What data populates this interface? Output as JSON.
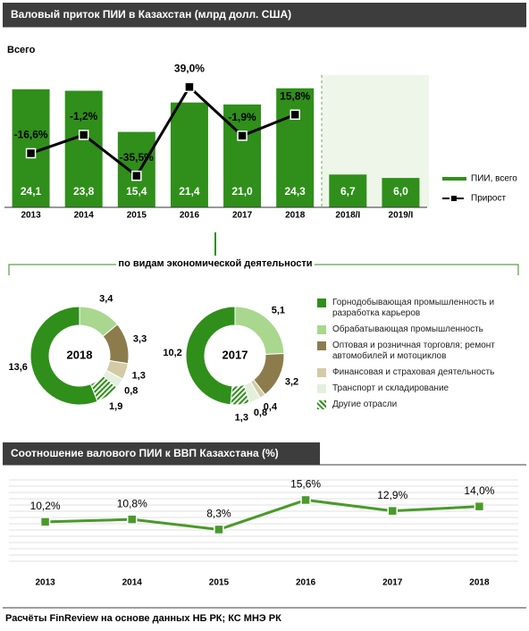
{
  "chart_data": [
    {
      "type": "bar",
      "title": "Валовый приток ПИИ в Казахстан (млрд долл. США)",
      "subtitle": "Всего",
      "categories": [
        "2013",
        "2014",
        "2015",
        "2016",
        "2017",
        "2018",
        "2018/I",
        "2019/I"
      ],
      "ylim": [
        0,
        27
      ],
      "y2lim": [
        -62,
        49
      ],
      "series": [
        {
          "name": "ПИИ, всего",
          "color": "#2f8f1a",
          "values": [
            24.1,
            23.8,
            15.4,
            21.4,
            21.0,
            24.3,
            6.7,
            6.0
          ],
          "value_labels": [
            "24,1",
            "23,8",
            "15,4",
            "21,4",
            "21,0",
            "24,3",
            "6,7",
            "6,0"
          ]
        },
        {
          "name": "Прирост",
          "color": "#000000",
          "axis": "y2",
          "values": [
            -16.6,
            -1.2,
            -35.5,
            39.0,
            -1.9,
            15.8,
            null,
            null
          ],
          "value_labels": [
            "-16,6%",
            "-1,2%",
            "-35,5%",
            "39,0%",
            "-1,9%",
            "15,8%",
            null,
            null
          ]
        }
      ]
    },
    {
      "type": "pie",
      "title": "по видам экономической деятельности",
      "categories": [
        "Горнодобывающая промышленность и разработка карьеров",
        "Обрабатывающая промышленность",
        "Оптовая и розничная торговля; ремонт автомобилей и мотоциклов",
        "Финансовая и страховая деятельность",
        "Транспорт и складирование",
        "Другие отрасли"
      ],
      "colors": [
        "#2f8f1a",
        "#a9d78e",
        "#8c7c4c",
        "#d4caa6",
        "#e3f1dc",
        "#2f8f1a"
      ],
      "hatch": [
        false,
        false,
        false,
        false,
        false,
        true
      ],
      "series": [
        {
          "name": "2018",
          "values": [
            13.6,
            3.4,
            3.3,
            1.3,
            0.8,
            1.9
          ],
          "value_labels": [
            "13,6",
            "3,4",
            "3,3",
            "1,3",
            "0,8",
            "1,9"
          ]
        },
        {
          "name": "2017",
          "values": [
            10.2,
            5.1,
            3.2,
            0.4,
            0.8,
            1.3
          ],
          "value_labels": [
            "10,2",
            "5,1",
            "3,2",
            "0,4",
            "0,8",
            "1,3"
          ]
        }
      ]
    },
    {
      "type": "line",
      "title": "Соотношение валового ПИИ к ВВП Казахстана (%)",
      "categories": [
        "2013",
        "2014",
        "2015",
        "2016",
        "2017",
        "2018"
      ],
      "values": [
        10.2,
        10.8,
        8.3,
        15.6,
        12.9,
        14.0
      ],
      "value_labels": [
        "10,2%",
        "10,8%",
        "8,3%",
        "15,6%",
        "12,9%",
        "14,0%"
      ],
      "color": "#4a9a2a",
      "ylim": [
        0,
        21
      ]
    }
  ],
  "footer": "Расчёты FinReview на основе данных НБ РК; КС МНЭ РК"
}
